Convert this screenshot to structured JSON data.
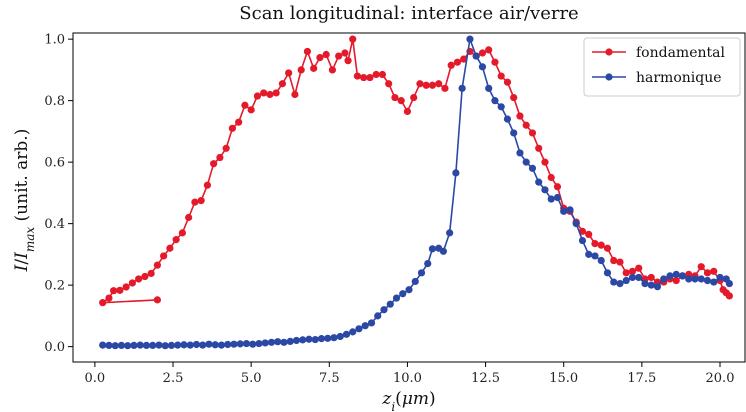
{
  "chart_data": {
    "type": "line",
    "title": "Scan longitudinal: interface air/verre",
    "xlabel": "z_i(μm)",
    "ylabel": "I/I_max (unit. arb.)",
    "xlim": [
      -0.7,
      20.8
    ],
    "ylim": [
      -0.05,
      1.02
    ],
    "xticks": [
      "0.0",
      "2.5",
      "5.0",
      "7.5",
      "10.0",
      "12.5",
      "15.0",
      "17.5",
      "20.0"
    ],
    "yticks": [
      "0.0",
      "0.2",
      "0.4",
      "0.6",
      "0.8",
      "1.0"
    ],
    "grid": false,
    "legend_position": "top-right",
    "series": [
      {
        "name": "fondamental",
        "color": "#e41a2b",
        "points": [
          [
            2.0,
            0.152
          ],
          [
            0.25,
            0.143
          ],
          [
            0.45,
            0.158
          ],
          [
            0.6,
            0.182
          ],
          [
            0.8,
            0.183
          ],
          [
            1.0,
            0.194
          ],
          [
            1.2,
            0.207
          ],
          [
            1.4,
            0.22
          ],
          [
            1.6,
            0.228
          ],
          [
            1.8,
            0.238
          ],
          [
            2.0,
            0.265
          ],
          [
            2.2,
            0.295
          ],
          [
            2.4,
            0.32
          ],
          [
            2.6,
            0.348
          ],
          [
            2.8,
            0.37
          ],
          [
            3.0,
            0.42
          ],
          [
            3.2,
            0.47
          ],
          [
            3.4,
            0.475
          ],
          [
            3.6,
            0.525
          ],
          [
            3.8,
            0.595
          ],
          [
            4.0,
            0.615
          ],
          [
            4.2,
            0.645
          ],
          [
            4.4,
            0.71
          ],
          [
            4.6,
            0.73
          ],
          [
            4.8,
            0.785
          ],
          [
            5.0,
            0.77
          ],
          [
            5.2,
            0.815
          ],
          [
            5.4,
            0.825
          ],
          [
            5.6,
            0.82
          ],
          [
            5.8,
            0.825
          ],
          [
            6.0,
            0.855
          ],
          [
            6.2,
            0.89
          ],
          [
            6.4,
            0.82
          ],
          [
            6.6,
            0.9
          ],
          [
            6.8,
            0.96
          ],
          [
            7.0,
            0.905
          ],
          [
            7.2,
            0.94
          ],
          [
            7.4,
            0.95
          ],
          [
            7.6,
            0.9
          ],
          [
            7.8,
            0.945
          ],
          [
            8.0,
            0.955
          ],
          [
            8.1,
            0.93
          ],
          [
            8.25,
            1.0
          ],
          [
            8.4,
            0.88
          ],
          [
            8.6,
            0.875
          ],
          [
            8.8,
            0.875
          ],
          [
            9.0,
            0.885
          ],
          [
            9.2,
            0.885
          ],
          [
            9.4,
            0.855
          ],
          [
            9.6,
            0.81
          ],
          [
            9.8,
            0.8
          ],
          [
            10.0,
            0.765
          ],
          [
            10.2,
            0.81
          ],
          [
            10.4,
            0.855
          ],
          [
            10.6,
            0.85
          ],
          [
            10.8,
            0.85
          ],
          [
            11.0,
            0.855
          ],
          [
            11.2,
            0.84
          ],
          [
            11.4,
            0.915
          ],
          [
            11.6,
            0.925
          ],
          [
            11.8,
            0.935
          ],
          [
            12.0,
            0.96
          ],
          [
            12.2,
            0.945
          ],
          [
            12.4,
            0.955
          ],
          [
            12.6,
            0.965
          ],
          [
            12.8,
            0.925
          ],
          [
            13.0,
            0.88
          ],
          [
            13.2,
            0.86
          ],
          [
            13.4,
            0.81
          ],
          [
            13.6,
            0.75
          ],
          [
            13.8,
            0.72
          ],
          [
            14.0,
            0.695
          ],
          [
            14.2,
            0.645
          ],
          [
            14.4,
            0.6
          ],
          [
            14.6,
            0.55
          ],
          [
            14.8,
            0.52
          ],
          [
            15.0,
            0.45
          ],
          [
            15.2,
            0.44
          ],
          [
            15.4,
            0.405
          ],
          [
            15.6,
            0.375
          ],
          [
            15.8,
            0.365
          ],
          [
            16.0,
            0.335
          ],
          [
            16.2,
            0.33
          ],
          [
            16.4,
            0.32
          ],
          [
            16.6,
            0.28
          ],
          [
            16.8,
            0.275
          ],
          [
            17.0,
            0.24
          ],
          [
            17.2,
            0.245
          ],
          [
            17.4,
            0.255
          ],
          [
            17.6,
            0.22
          ],
          [
            17.8,
            0.225
          ],
          [
            18.0,
            0.21
          ],
          [
            18.2,
            0.21
          ],
          [
            18.4,
            0.22
          ],
          [
            18.6,
            0.215
          ],
          [
            18.8,
            0.23
          ],
          [
            19.0,
            0.235
          ],
          [
            19.2,
            0.23
          ],
          [
            19.4,
            0.26
          ],
          [
            19.6,
            0.24
          ],
          [
            19.8,
            0.245
          ],
          [
            20.0,
            0.215
          ],
          [
            20.1,
            0.185
          ],
          [
            20.2,
            0.175
          ],
          [
            20.3,
            0.165
          ]
        ]
      },
      {
        "name": "harmonique",
        "color": "#2b48a5",
        "points": [
          [
            0.25,
            0.005
          ],
          [
            0.45,
            0.004
          ],
          [
            0.65,
            0.003
          ],
          [
            0.85,
            0.004
          ],
          [
            1.05,
            0.003
          ],
          [
            1.25,
            0.004
          ],
          [
            1.45,
            0.005
          ],
          [
            1.65,
            0.004
          ],
          [
            1.85,
            0.004
          ],
          [
            2.05,
            0.005
          ],
          [
            2.25,
            0.003
          ],
          [
            2.45,
            0.004
          ],
          [
            2.65,
            0.005
          ],
          [
            2.85,
            0.006
          ],
          [
            3.05,
            0.005
          ],
          [
            3.25,
            0.007
          ],
          [
            3.45,
            0.005
          ],
          [
            3.65,
            0.008
          ],
          [
            3.85,
            0.006
          ],
          [
            4.05,
            0.005
          ],
          [
            4.25,
            0.007
          ],
          [
            4.45,
            0.008
          ],
          [
            4.65,
            0.009
          ],
          [
            4.85,
            0.01
          ],
          [
            5.05,
            0.008
          ],
          [
            5.25,
            0.01
          ],
          [
            5.45,
            0.012
          ],
          [
            5.65,
            0.014
          ],
          [
            5.85,
            0.016
          ],
          [
            6.05,
            0.014
          ],
          [
            6.25,
            0.017
          ],
          [
            6.45,
            0.02
          ],
          [
            6.65,
            0.022
          ],
          [
            6.85,
            0.024
          ],
          [
            7.05,
            0.023
          ],
          [
            7.25,
            0.026
          ],
          [
            7.45,
            0.027
          ],
          [
            7.65,
            0.029
          ],
          [
            7.85,
            0.033
          ],
          [
            8.05,
            0.04
          ],
          [
            8.25,
            0.048
          ],
          [
            8.45,
            0.058
          ],
          [
            8.65,
            0.068
          ],
          [
            8.85,
            0.077
          ],
          [
            9.05,
            0.1
          ],
          [
            9.25,
            0.12
          ],
          [
            9.45,
            0.138
          ],
          [
            9.65,
            0.158
          ],
          [
            9.85,
            0.172
          ],
          [
            10.05,
            0.185
          ],
          [
            10.25,
            0.212
          ],
          [
            10.45,
            0.24
          ],
          [
            10.65,
            0.27
          ],
          [
            10.8,
            0.318
          ],
          [
            11.0,
            0.32
          ],
          [
            11.15,
            0.31
          ],
          [
            11.35,
            0.37
          ],
          [
            11.55,
            0.565
          ],
          [
            11.75,
            0.84
          ],
          [
            12.0,
            1.0
          ],
          [
            12.2,
            0.945
          ],
          [
            12.4,
            0.91
          ],
          [
            12.6,
            0.84
          ],
          [
            12.8,
            0.8
          ],
          [
            13.0,
            0.78
          ],
          [
            13.2,
            0.74
          ],
          [
            13.4,
            0.695
          ],
          [
            13.6,
            0.63
          ],
          [
            13.8,
            0.6
          ],
          [
            14.0,
            0.58
          ],
          [
            14.2,
            0.535
          ],
          [
            14.4,
            0.51
          ],
          [
            14.6,
            0.48
          ],
          [
            14.8,
            0.485
          ],
          [
            15.0,
            0.44
          ],
          [
            15.2,
            0.445
          ],
          [
            15.4,
            0.4
          ],
          [
            15.6,
            0.345
          ],
          [
            15.8,
            0.3
          ],
          [
            16.0,
            0.295
          ],
          [
            16.2,
            0.28
          ],
          [
            16.4,
            0.24
          ],
          [
            16.6,
            0.21
          ],
          [
            16.8,
            0.205
          ],
          [
            17.0,
            0.215
          ],
          [
            17.2,
            0.225
          ],
          [
            17.4,
            0.225
          ],
          [
            17.6,
            0.205
          ],
          [
            17.8,
            0.2
          ],
          [
            18.0,
            0.195
          ],
          [
            18.2,
            0.22
          ],
          [
            18.4,
            0.23
          ],
          [
            18.6,
            0.235
          ],
          [
            18.8,
            0.23
          ],
          [
            19.0,
            0.22
          ],
          [
            19.2,
            0.22
          ],
          [
            19.4,
            0.22
          ],
          [
            19.6,
            0.215
          ],
          [
            19.8,
            0.21
          ],
          [
            20.0,
            0.225
          ],
          [
            20.2,
            0.22
          ],
          [
            20.3,
            0.205
          ]
        ]
      }
    ]
  }
}
